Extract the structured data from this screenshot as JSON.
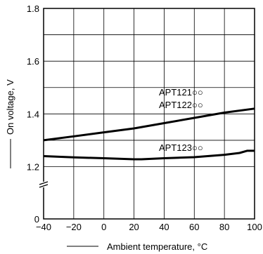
{
  "chart_data": {
    "type": "line",
    "title": "",
    "xlabel": "Ambient temperature, °C",
    "ylabel": "On voltage, V",
    "xlim": [
      -40,
      100
    ],
    "ylim": [
      0,
      1.8
    ],
    "x_ticks": [
      -40,
      -20,
      0,
      20,
      40,
      60,
      80,
      100
    ],
    "x_tick_labels": [
      "−40",
      "−20",
      "0",
      "20",
      "40",
      "60",
      "80",
      "100"
    ],
    "y_ticks": [
      0,
      1.2,
      1.4,
      1.6,
      1.8
    ],
    "y_tick_labels": [
      "0",
      "1.2",
      "1.4",
      "1.6",
      "1.8"
    ],
    "y_axis_break": true,
    "grid": true,
    "series": [
      {
        "name": "APT121○○ APT122○○",
        "label_lines": [
          "APT121○○",
          "APT122○○"
        ],
        "x": [
          -40,
          -20,
          0,
          20,
          40,
          60,
          80,
          100
        ],
        "y": [
          1.3,
          1.315,
          1.33,
          1.345,
          1.365,
          1.385,
          1.405,
          1.42
        ]
      },
      {
        "name": "APT123○○",
        "label_lines": [
          "APT123○○"
        ],
        "x": [
          -40,
          -20,
          0,
          20,
          25,
          40,
          60,
          80,
          90,
          95,
          100
        ],
        "y": [
          1.24,
          1.235,
          1.232,
          1.228,
          1.228,
          1.232,
          1.236,
          1.245,
          1.252,
          1.26,
          1.26
        ]
      }
    ]
  }
}
